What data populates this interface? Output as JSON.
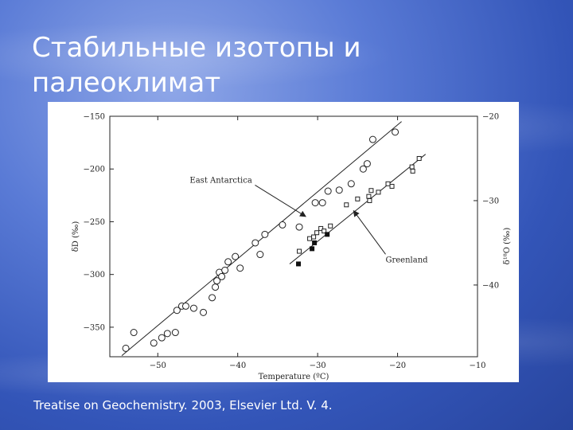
{
  "slide": {
    "title_lines": [
      "Стабильные изотопы и",
      "палеоклимат"
    ],
    "caption": "Treatise on Geochemistry. 2003, Elsevier Ltd. V. 4."
  },
  "chart_data": {
    "type": "scatter",
    "xlabel": "Temperature (ºC)",
    "ylabel_left": "δD (‰)",
    "ylabel_right": "δ¹⁸O (‰)",
    "xlim": [
      -56,
      -10
    ],
    "ylim_left": [
      -378,
      -150
    ],
    "ylim_right": [
      -48.5,
      -20
    ],
    "x_ticks": [
      -50,
      -40,
      -30,
      -20,
      -10
    ],
    "x_tick_labels": [
      "−50",
      "−40",
      "−30",
      "−20",
      "−10"
    ],
    "y_left_ticks": [
      -150,
      -200,
      -250,
      -300,
      -350
    ],
    "y_left_tick_labels": [
      "−150",
      "−200",
      "−250",
      "−300",
      "−350"
    ],
    "y_right_ticks": [
      -20,
      -30,
      -40
    ],
    "y_right_tick_labels": [
      "−20",
      "−30",
      "−40"
    ],
    "grid": false,
    "series": [
      {
        "name": "East Antarctica",
        "axis": "left",
        "marker": "circle-open",
        "points": [
          [
            -54.0,
            -370
          ],
          [
            -53.0,
            -355
          ],
          [
            -50.5,
            -365
          ],
          [
            -49.5,
            -360
          ],
          [
            -48.8,
            -356
          ],
          [
            -47.8,
            -355
          ],
          [
            -47.6,
            -334
          ],
          [
            -47.0,
            -330
          ],
          [
            -46.5,
            -330
          ],
          [
            -45.5,
            -332
          ],
          [
            -44.3,
            -336
          ],
          [
            -43.2,
            -322
          ],
          [
            -42.8,
            -312
          ],
          [
            -42.6,
            -306
          ],
          [
            -42.3,
            -298
          ],
          [
            -42.0,
            -302
          ],
          [
            -41.6,
            -296
          ],
          [
            -41.2,
            -288
          ],
          [
            -40.3,
            -283
          ],
          [
            -39.7,
            -294
          ],
          [
            -37.8,
            -270
          ],
          [
            -37.2,
            -281
          ],
          [
            -36.6,
            -262
          ],
          [
            -34.4,
            -253
          ],
          [
            -32.3,
            -255
          ],
          [
            -30.3,
            -232
          ],
          [
            -29.4,
            -232
          ],
          [
            -28.7,
            -221
          ],
          [
            -27.3,
            -220
          ],
          [
            -25.8,
            -214
          ],
          [
            -24.3,
            -200
          ],
          [
            -23.8,
            -195
          ],
          [
            -23.1,
            -172
          ],
          [
            -20.3,
            -165
          ]
        ],
        "fit": [
          [
            -54.5,
            -377
          ],
          [
            -19.5,
            -155
          ]
        ]
      },
      {
        "name": "Greenland",
        "axis": "right",
        "marker": "square-open",
        "points": [
          [
            -32.3,
            -36.0
          ],
          [
            -31.0,
            -34.5
          ],
          [
            -30.5,
            -34.3
          ],
          [
            -30.1,
            -33.8
          ],
          [
            -29.6,
            -33.3
          ],
          [
            -29.2,
            -33.6
          ],
          [
            -28.4,
            -33.0
          ],
          [
            -26.4,
            -30.5
          ],
          [
            -25.0,
            -29.8
          ],
          [
            -23.6,
            -29.5
          ],
          [
            -23.5,
            -30.0
          ],
          [
            -23.3,
            -28.8
          ],
          [
            -22.4,
            -29.0
          ],
          [
            -21.2,
            -28.0
          ],
          [
            -20.7,
            -28.3
          ],
          [
            -18.2,
            -26.0
          ],
          [
            -18.1,
            -26.5
          ],
          [
            -17.3,
            -25.0
          ]
        ],
        "fit": [
          [
            -33.5,
            -37.5
          ],
          [
            -16.5,
            -24.5
          ]
        ]
      },
      {
        "name": "",
        "axis": "right",
        "marker": "square-filled",
        "points": [
          [
            -32.4,
            -37.5
          ],
          [
            -30.7,
            -35.7
          ],
          [
            -30.4,
            -35.0
          ],
          [
            -28.8,
            -34.0
          ]
        ]
      }
    ],
    "annotations": [
      {
        "text": "East Antarctica",
        "label_at": [
          -46.0,
          -213
        ],
        "arrow_to": [
          -31.5,
          -245
        ],
        "axis": "left"
      },
      {
        "text": "Greenland",
        "label_at": [
          -21.5,
          -37.3
        ],
        "arrow_to": [
          -25.5,
          -31.2
        ],
        "axis": "right"
      }
    ]
  }
}
